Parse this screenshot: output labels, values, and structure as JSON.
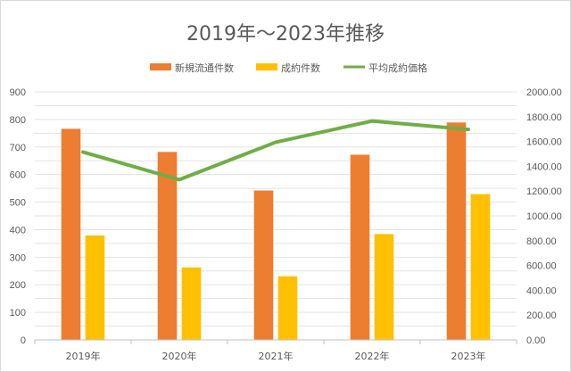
{
  "chart_data": {
    "type": "bar",
    "title": "2019年～2023年推移",
    "categories": [
      "2019年",
      "2020年",
      "2021年",
      "2022年",
      "2023年"
    ],
    "series": [
      {
        "name": "新規流通件数",
        "type": "bar",
        "axis": "left",
        "color": "#ED7D31",
        "values": [
          766,
          682,
          542,
          672,
          789
        ]
      },
      {
        "name": "成約件数",
        "type": "bar",
        "axis": "left",
        "color": "#FFC000",
        "values": [
          379,
          263,
          231,
          384,
          529
        ]
      },
      {
        "name": "平均成約価格",
        "type": "line",
        "axis": "right",
        "color": "#70AD47",
        "values": [
          1515,
          1292,
          1594,
          1765,
          1697
        ]
      }
    ],
    "y_left": {
      "min": 0,
      "max": 900,
      "step": 100,
      "ticks": [
        "0",
        "100",
        "200",
        "300",
        "400",
        "500",
        "600",
        "700",
        "800",
        "900"
      ]
    },
    "y_right": {
      "min": 0,
      "max": 2000,
      "step": 200,
      "ticks": [
        "0.00",
        "200.00",
        "400.00",
        "600.00",
        "800.00",
        "1000.00",
        "1200.00",
        "1400.00",
        "1600.00",
        "1800.00",
        "2000.00"
      ]
    },
    "legend_position": "top",
    "grid": true
  }
}
